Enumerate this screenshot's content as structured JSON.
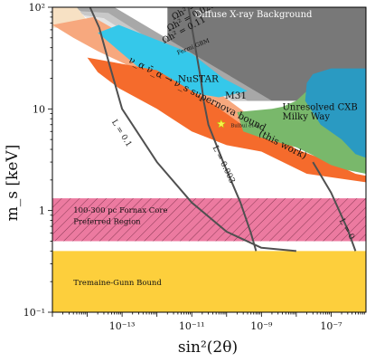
{
  "chart_data": {
    "type": "area",
    "title": "",
    "xlabel": "sin²(2θ)",
    "ylabel": "m_s [keV]",
    "x_scale": "log",
    "y_scale": "log",
    "xlim": [
      1e-15,
      1e-06
    ],
    "ylim": [
      0.1,
      100
    ],
    "grid": false,
    "x_ticks": [
      {
        "value": 1e-13,
        "label": "10⁻¹³"
      },
      {
        "value": 1e-11,
        "label": "10⁻¹¹"
      },
      {
        "value": 1e-09,
        "label": "10⁻⁹"
      },
      {
        "value": 1e-07,
        "label": "10⁻⁷"
      }
    ],
    "y_ticks": [
      {
        "value": 0.1,
        "label": "10⁻¹"
      },
      {
        "value": 1,
        "label": "1"
      },
      {
        "value": 10,
        "label": "10"
      },
      {
        "value": 100,
        "label": "10²"
      }
    ],
    "regions": [
      {
        "name": "Tremaine-Gunn Bound",
        "color": "#fdcf3c",
        "points": [
          [
            1e-15,
            0.1
          ],
          [
            1e-06,
            0.1
          ],
          [
            1e-06,
            0.4
          ],
          [
            1e-15,
            0.4
          ]
        ]
      },
      {
        "name": "100-300 pc Fornax Core Preferred Region",
        "color": "#ec7aa0",
        "hatch": true,
        "points": [
          [
            1e-15,
            0.5
          ],
          [
            1e-06,
            0.5
          ],
          [
            1e-06,
            1.32
          ],
          [
            1e-15,
            1.32
          ]
        ]
      },
      {
        "name": "Diffuse X-ray Background",
        "color": "#787878",
        "points": [
          [
            2e-12,
            12
          ],
          [
            2e-12,
            100
          ],
          [
            1e-06,
            100
          ],
          [
            1e-06,
            12
          ]
        ]
      },
      {
        "name": "Ωh² = 0.005",
        "color": "#a8a8a8",
        "points": [
          [
            4e-15,
            100
          ],
          [
            6e-14,
            100
          ],
          [
            2e-09,
            12
          ],
          [
            4e-10,
            12
          ]
        ]
      },
      {
        "name": "Ωh² = 0.025",
        "color": "#c8c8c8",
        "points": [
          [
            5e-15,
            92
          ],
          [
            4e-14,
            88
          ],
          [
            4e-10,
            12
          ],
          [
            1.5e-10,
            12
          ]
        ]
      },
      {
        "name": "Ωh² = 0.11",
        "color": "#e4e4e4",
        "points": [
          [
            7e-15,
            84
          ],
          [
            3e-14,
            78
          ],
          [
            1.5e-10,
            12
          ],
          [
            6e-11,
            12
          ]
        ]
      },
      {
        "name": "",
        "color": "#f7e1c4",
        "points": [
          [
            1e-15,
            63
          ],
          [
            1e-15,
            100
          ],
          [
            5e-15,
            100
          ],
          [
            1e-14,
            74
          ],
          [
            1.5e-14,
            60
          ]
        ]
      },
      {
        "name": "NuSTAR",
        "color": "#f7a87e",
        "points": [
          [
            1e-15,
            67
          ],
          [
            1.5e-14,
            80
          ],
          [
            5e-14,
            63
          ],
          [
            5e-13,
            40
          ],
          [
            3e-11,
            17
          ],
          [
            6e-10,
            8
          ],
          [
            6e-10,
            5.2
          ],
          [
            1e-10,
            5
          ],
          [
            1e-11,
            10
          ],
          [
            5e-13,
            22
          ],
          [
            2e-14,
            37
          ],
          [
            4e-15,
            50
          ]
        ]
      },
      {
        "name": "Fermi GBM",
        "color": "#35c8ea",
        "points": [
          [
            2e-14,
            56
          ],
          [
            8e-14,
            67
          ],
          [
            1e-11,
            35
          ],
          [
            8e-11,
            20
          ],
          [
            4e-10,
            15
          ],
          [
            6e-11,
            13
          ],
          [
            5e-12,
            15
          ],
          [
            5e-13,
            22
          ]
        ]
      },
      {
        "name": "ν_α ν̄_α → ν_s supernova bound (this work)",
        "color": "#f56b2c",
        "points": [
          [
            1e-14,
            32
          ],
          [
            1e-12,
            24
          ],
          [
            3e-11,
            12
          ],
          [
            4e-10,
            6.4
          ],
          [
            2e-09,
            6
          ],
          [
            1e-08,
            4
          ],
          [
            1e-07,
            3
          ],
          [
            5e-07,
            2.3
          ],
          [
            1e-06,
            2.2
          ],
          [
            1e-06,
            1.9
          ],
          [
            2e-08,
            2.3
          ],
          [
            1e-09,
            3.8
          ],
          [
            1e-10,
            4.4
          ],
          [
            1e-11,
            6
          ],
          [
            1e-12,
            10
          ],
          [
            8e-14,
            16
          ],
          [
            2e-14,
            23
          ]
        ]
      },
      {
        "name": "M31",
        "color": "#79b86b",
        "points": [
          [
            2e-10,
            9.3
          ],
          [
            2e-09,
            10
          ],
          [
            4e-09,
            10.5
          ],
          [
            1e-08,
            12
          ],
          [
            3e-08,
            17
          ],
          [
            6e-08,
            16
          ],
          [
            1.5e-07,
            12
          ],
          [
            5e-07,
            6
          ],
          [
            1e-06,
            4.5
          ],
          [
            1e-06,
            2.3
          ],
          [
            3e-07,
            2.5
          ],
          [
            1e-07,
            2.8
          ],
          [
            3e-08,
            3.5
          ],
          [
            1e-08,
            4.2
          ],
          [
            1e-09,
            5.2
          ],
          [
            3e-10,
            6
          ]
        ]
      },
      {
        "name": "Unresolved CXB Milky Way",
        "color": "#2a9ac2",
        "points": [
          [
            3e-08,
            22
          ],
          [
            1e-07,
            25
          ],
          [
            1e-06,
            25
          ],
          [
            1e-06,
            3.3
          ],
          [
            5e-07,
            3.6
          ],
          [
            2e-07,
            5
          ],
          [
            5e-08,
            7
          ],
          [
            1.8e-08,
            12
          ],
          [
            2e-08,
            18
          ]
        ]
      }
    ],
    "curves": [
      {
        "name": "L = 0.1",
        "color": "#505050",
        "points": [
          [
            1.2e-14,
            100
          ],
          [
            2.2e-14,
            63
          ],
          [
            4e-14,
            30
          ],
          [
            1e-13,
            10
          ],
          [
            1e-12,
            3
          ],
          [
            1e-11,
            1.2
          ],
          [
            1e-10,
            0.62
          ],
          [
            1e-09,
            0.43
          ],
          [
            1e-08,
            0.4
          ]
        ]
      },
      {
        "name": "L = 0.003",
        "color": "#505050",
        "points": [
          [
            8e-12,
            100
          ],
          [
            1.8e-11,
            20
          ],
          [
            2.2e-11,
            12
          ],
          [
            3e-11,
            7
          ],
          [
            8e-11,
            3
          ],
          [
            2.5e-10,
            1.2
          ],
          [
            5e-10,
            0.6
          ],
          [
            7e-10,
            0.4
          ]
        ]
      },
      {
        "name": "L = 0",
        "color": "#505050",
        "points": [
          [
            3e-08,
            3
          ],
          [
            1e-07,
            1.5
          ],
          [
            3e-07,
            0.65
          ],
          [
            5e-07,
            0.4
          ]
        ]
      }
    ],
    "points": [
      {
        "name": "Bulbul et al.",
        "x": 7e-11,
        "y": 7.1,
        "color": "#f7f74a",
        "marker": "star"
      }
    ],
    "annotations": [
      {
        "text": "Diffuse X-ray Background",
        "x": 1.2e-11,
        "y": 80,
        "color": "#ffffff",
        "size": 10,
        "rotate": 0
      },
      {
        "text": "Ωh² = 0.005",
        "x": 3e-12,
        "y": 75,
        "color": "#111111",
        "size": 9.5,
        "rotate": -28
      },
      {
        "text": "Ωh² = 0.025",
        "x": 2.2e-12,
        "y": 58,
        "color": "#111111",
        "size": 9.5,
        "rotate": -28
      },
      {
        "text": "Ωh² = 0.11",
        "x": 1.6e-12,
        "y": 44,
        "color": "#111111",
        "size": 9.5,
        "rotate": -28
      },
      {
        "text": "Fermi GBM",
        "x": 4e-12,
        "y": 34,
        "color": "#111111",
        "size": 6.5,
        "rotate": -22
      },
      {
        "text": "NuSTAR",
        "x": 4e-12,
        "y": 18.5,
        "color": "#111111",
        "size": 10.5,
        "rotate": 0
      },
      {
        "text": "ν_α ν̄_α → ν_s supernova bound",
        "x": 1.5e-13,
        "y": 29,
        "color": "#111111",
        "size": 10.5,
        "rotate": 27
      },
      {
        "text": "(this work)",
        "x": 8e-10,
        "y": 5.5,
        "color": "#111111",
        "size": 10.5,
        "rotate": 27
      },
      {
        "text": "M31",
        "x": 9e-11,
        "y": 12.6,
        "color": "#111111",
        "size": 10.5,
        "rotate": 0
      },
      {
        "text": "Bulbul et al.",
        "x": 1.3e-10,
        "y": 6.6,
        "color": "#222222",
        "size": 5.5,
        "rotate": 0
      },
      {
        "text": "Unresolved CXB",
        "x": 4e-09,
        "y": 9.8,
        "color": "#111111",
        "size": 10,
        "rotate": 0
      },
      {
        "text": "Milky Way",
        "x": 4e-09,
        "y": 7.9,
        "color": "#111111",
        "size": 10,
        "rotate": 0
      },
      {
        "text": "L = 0.1",
        "x": 5e-14,
        "y": 7.5,
        "color": "#222222",
        "size": 9,
        "rotate": 58
      },
      {
        "text": "L = 0.003",
        "x": 4e-11,
        "y": 4.2,
        "color": "#222222",
        "size": 9,
        "rotate": 64
      },
      {
        "text": "L = 0",
        "x": 1.7e-07,
        "y": 0.8,
        "color": "#222222",
        "size": 9,
        "rotate": 60
      },
      {
        "text": "100-300 pc Fornax Core",
        "x": 4e-15,
        "y": 0.95,
        "color": "#111111",
        "size": 8.5,
        "rotate": 0
      },
      {
        "text": "Preferred Region",
        "x": 4e-15,
        "y": 0.74,
        "color": "#111111",
        "size": 8.5,
        "rotate": 0
      },
      {
        "text": "Tremaine-Gunn Bound",
        "x": 4e-15,
        "y": 0.185,
        "color": "#111111",
        "size": 8.5,
        "rotate": 0
      }
    ]
  }
}
